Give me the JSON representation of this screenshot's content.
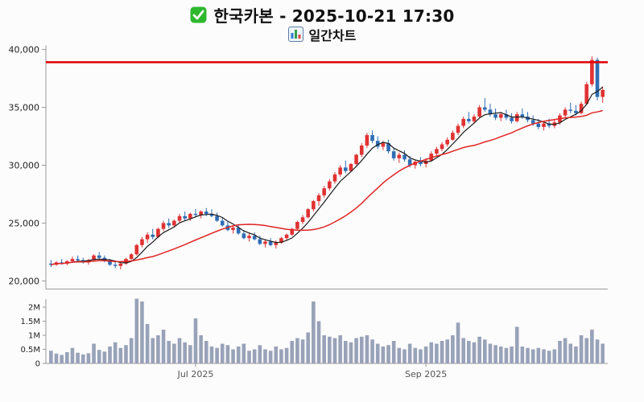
{
  "header": {
    "title": "한국카본 - 2025-10-21 17:30",
    "subtitle": "일간차트",
    "check_icon": "green-check-icon",
    "chart_icon": "bar-chart-icon"
  },
  "chart_data": {
    "type": "candlestick",
    "title": "한국카본 일간차트 2025-10-21 17:30",
    "legend_position": "none",
    "grid": false,
    "ylim": [
      19300,
      40350
    ],
    "y_ticks": [
      {
        "v": 40000,
        "label": "40,000"
      },
      {
        "v": 35000,
        "label": "35,000"
      },
      {
        "v": 30000,
        "label": "30,000"
      },
      {
        "v": 25000,
        "label": "25,000"
      },
      {
        "v": 20000,
        "label": "20,000"
      }
    ],
    "x_ticks": [
      {
        "index": 27,
        "label": "Jul 2025"
      },
      {
        "index": 70,
        "label": "Sep 2025"
      }
    ],
    "resistance_line": 38900,
    "overlays": [
      {
        "name": "MA5",
        "window": 5,
        "color": "#1b1b1b"
      },
      {
        "name": "MA20",
        "window": 20,
        "color": "#e02424"
      }
    ],
    "colors": {
      "up": "#e03232",
      "down": "#2f6db5",
      "volume": "#98a2b8",
      "resistance": "#e00000",
      "axis": "#999999",
      "tick_text": "#222222",
      "month_text": "#555555"
    },
    "volume_ticks": [
      {
        "v": 2,
        "label": "2M"
      },
      {
        "v": 1.5,
        "label": "1.5M"
      },
      {
        "v": 1,
        "label": "1M"
      },
      {
        "v": 0.5,
        "label": "0.5M"
      },
      {
        "v": 0,
        "label": "0"
      }
    ],
    "candles": [
      [
        21500,
        21800,
        21200,
        21400
      ],
      [
        21400,
        21700,
        21300,
        21600
      ],
      [
        21600,
        21900,
        21400,
        21500
      ],
      [
        21500,
        21800,
        21350,
        21700
      ],
      [
        21700,
        22100,
        21600,
        21900
      ],
      [
        21900,
        22200,
        21700,
        21800
      ],
      [
        21800,
        22000,
        21500,
        21600
      ],
      [
        21600,
        21900,
        21400,
        21800
      ],
      [
        21800,
        22300,
        21700,
        22200
      ],
      [
        22200,
        22500,
        21900,
        22000
      ],
      [
        22000,
        22200,
        21600,
        21700
      ],
      [
        21700,
        21900,
        21300,
        21400
      ],
      [
        21400,
        21700,
        21100,
        21300
      ],
      [
        21300,
        21600,
        21000,
        21500
      ],
      [
        21500,
        22000,
        21400,
        21900
      ],
      [
        21900,
        22400,
        21800,
        22300
      ],
      [
        22300,
        23200,
        22200,
        23100
      ],
      [
        23100,
        23800,
        22900,
        23600
      ],
      [
        23600,
        24200,
        23300,
        24000
      ],
      [
        24000,
        24500,
        23600,
        23800
      ],
      [
        23800,
        24600,
        23700,
        24500
      ],
      [
        24500,
        25200,
        24300,
        25000
      ],
      [
        25000,
        25400,
        24600,
        24800
      ],
      [
        24800,
        25300,
        24600,
        25200
      ],
      [
        25200,
        25800,
        25000,
        25600
      ],
      [
        25600,
        26000,
        25200,
        25400
      ],
      [
        25400,
        25900,
        25200,
        25800
      ],
      [
        25800,
        26200,
        25500,
        25700
      ],
      [
        25700,
        26100,
        25400,
        26000
      ],
      [
        26000,
        26300,
        25600,
        25800
      ],
      [
        25800,
        26200,
        25500,
        25600
      ],
      [
        25600,
        25900,
        25100,
        25200
      ],
      [
        25200,
        25500,
        24700,
        24800
      ],
      [
        24800,
        25100,
        24300,
        24400
      ],
      [
        24400,
        24800,
        24100,
        24600
      ],
      [
        24600,
        24900,
        24000,
        24100
      ],
      [
        24100,
        24400,
        23600,
        23700
      ],
      [
        23700,
        24100,
        23400,
        23900
      ],
      [
        23900,
        24200,
        23500,
        23600
      ],
      [
        23600,
        23900,
        23100,
        23200
      ],
      [
        23200,
        23600,
        22900,
        23400
      ],
      [
        23400,
        23700,
        23000,
        23100
      ],
      [
        23100,
        23500,
        22800,
        23300
      ],
      [
        23300,
        23800,
        23200,
        23700
      ],
      [
        23700,
        24100,
        23500,
        24000
      ],
      [
        24000,
        24600,
        23900,
        24500
      ],
      [
        24500,
        25200,
        24400,
        25100
      ],
      [
        25100,
        25700,
        24900,
        25500
      ],
      [
        25500,
        26300,
        25400,
        26200
      ],
      [
        26200,
        27000,
        26000,
        26900
      ],
      [
        26900,
        27600,
        26500,
        27400
      ],
      [
        27400,
        28200,
        27200,
        28000
      ],
      [
        28000,
        28800,
        27800,
        28600
      ],
      [
        28600,
        29400,
        28400,
        29200
      ],
      [
        29200,
        30000,
        29000,
        29800
      ],
      [
        29800,
        30400,
        29300,
        29500
      ],
      [
        29500,
        30200,
        29400,
        30100
      ],
      [
        30100,
        31000,
        30000,
        30900
      ],
      [
        30900,
        31900,
        30700,
        31700
      ],
      [
        31700,
        32800,
        31500,
        32600
      ],
      [
        32600,
        33000,
        31900,
        32100
      ],
      [
        32100,
        32500,
        31400,
        31600
      ],
      [
        31600,
        32100,
        31300,
        31900
      ],
      [
        31900,
        32200,
        31000,
        31200
      ],
      [
        31200,
        31500,
        30400,
        30600
      ],
      [
        30600,
        31100,
        30200,
        30900
      ],
      [
        30900,
        31300,
        30300,
        30500
      ],
      [
        30500,
        30800,
        29800,
        30000
      ],
      [
        30000,
        30500,
        29700,
        30300
      ],
      [
        30300,
        30700,
        29900,
        30100
      ],
      [
        30100,
        30600,
        29800,
        30400
      ],
      [
        30400,
        31200,
        30300,
        31000
      ],
      [
        31000,
        31600,
        30800,
        31400
      ],
      [
        31400,
        32000,
        31200,
        31800
      ],
      [
        31800,
        32400,
        31600,
        32200
      ],
      [
        32200,
        33000,
        32100,
        32800
      ],
      [
        32800,
        33600,
        32600,
        33400
      ],
      [
        33400,
        34200,
        33200,
        34000
      ],
      [
        34000,
        34600,
        33600,
        33800
      ],
      [
        33800,
        34400,
        33600,
        34200
      ],
      [
        34200,
        35200,
        34100,
        35000
      ],
      [
        35000,
        35800,
        34600,
        34800
      ],
      [
        34800,
        35300,
        34200,
        34400
      ],
      [
        34400,
        34900,
        33900,
        34100
      ],
      [
        34100,
        34600,
        33800,
        34400
      ],
      [
        34400,
        34800,
        33900,
        34100
      ],
      [
        34100,
        34500,
        33600,
        33800
      ],
      [
        33800,
        34600,
        33700,
        34400
      ],
      [
        34400,
        34900,
        34000,
        34200
      ],
      [
        34200,
        34600,
        33700,
        33900
      ],
      [
        33900,
        34300,
        33400,
        33600
      ],
      [
        33600,
        34000,
        33100,
        33300
      ],
      [
        33300,
        33800,
        33000,
        33600
      ],
      [
        33600,
        34000,
        33200,
        33400
      ],
      [
        33400,
        33900,
        33200,
        33700
      ],
      [
        33700,
        34500,
        33500,
        34300
      ],
      [
        34300,
        35000,
        34100,
        34800
      ],
      [
        34800,
        35400,
        34500,
        34700
      ],
      [
        34700,
        35200,
        34300,
        34500
      ],
      [
        34500,
        35500,
        34400,
        35300
      ],
      [
        35300,
        37200,
        35200,
        37000
      ],
      [
        37000,
        39400,
        36800,
        39100
      ],
      [
        39100,
        39300,
        35600,
        35900
      ],
      [
        35900,
        36800,
        35400,
        36500
      ]
    ],
    "volumes_millions": [
      0.45,
      0.35,
      0.3,
      0.4,
      0.55,
      0.38,
      0.32,
      0.36,
      0.7,
      0.48,
      0.42,
      0.6,
      0.75,
      0.55,
      0.65,
      0.9,
      2.3,
      2.2,
      1.4,
      0.9,
      1.0,
      1.2,
      0.8,
      0.7,
      0.9,
      0.75,
      0.65,
      1.6,
      1.0,
      0.8,
      0.6,
      0.55,
      0.7,
      0.65,
      0.5,
      0.6,
      0.7,
      0.45,
      0.5,
      0.65,
      0.5,
      0.45,
      0.6,
      0.5,
      0.55,
      0.8,
      0.9,
      0.85,
      1.1,
      2.2,
      1.5,
      1.0,
      0.95,
      0.9,
      1.0,
      0.8,
      0.75,
      0.9,
      0.95,
      1.0,
      0.85,
      0.7,
      0.6,
      0.65,
      0.8,
      0.55,
      0.5,
      0.7,
      0.55,
      0.5,
      0.6,
      0.75,
      0.7,
      0.8,
      0.85,
      1.0,
      1.45,
      0.9,
      0.8,
      0.75,
      0.95,
      0.85,
      0.7,
      0.65,
      0.6,
      0.55,
      0.6,
      1.3,
      0.6,
      0.55,
      0.5,
      0.55,
      0.5,
      0.45,
      0.5,
      0.8,
      0.9,
      0.7,
      0.6,
      1.0,
      0.9,
      1.2,
      0.85,
      0.7
    ]
  }
}
